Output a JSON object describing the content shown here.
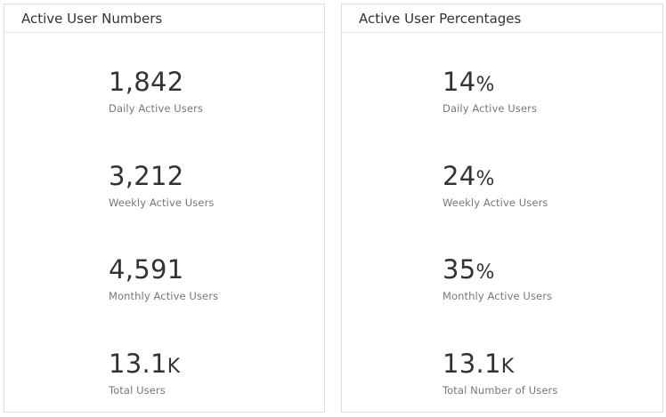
{
  "numbers_panel": {
    "title": "Active User Numbers",
    "metrics": [
      {
        "value": "1,842",
        "suffix": "",
        "label": "Daily Active Users"
      },
      {
        "value": "3,212",
        "suffix": "",
        "label": "Weekly Active Users"
      },
      {
        "value": "4,591",
        "suffix": "",
        "label": "Monthly Active Users"
      },
      {
        "value": "13.1",
        "suffix": "K",
        "label": "Total Users"
      }
    ]
  },
  "percentages_panel": {
    "title": "Active User Percentages",
    "metrics": [
      {
        "value": "14",
        "suffix": "%",
        "label": "Daily Active Users"
      },
      {
        "value": "24",
        "suffix": "%",
        "label": "Weekly Active Users"
      },
      {
        "value": "35",
        "suffix": "%",
        "label": "Monthly Active Users"
      },
      {
        "value": "13.1",
        "suffix": "K",
        "label": "Total Number of Users"
      }
    ]
  }
}
